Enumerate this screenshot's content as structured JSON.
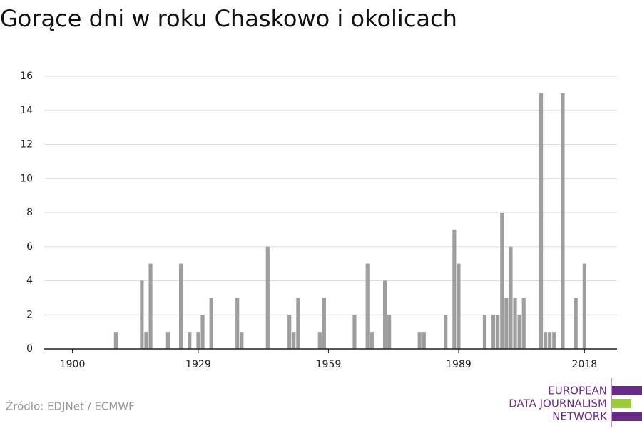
{
  "chart_data": {
    "type": "bar",
    "title": "Gorące dni w roku Chaskowo i okolicach",
    "x": [
      1910,
      1916,
      1917,
      1918,
      1922,
      1925,
      1927,
      1929,
      1930,
      1932,
      1938,
      1939,
      1945,
      1950,
      1951,
      1952,
      1957,
      1958,
      1965,
      1968,
      1969,
      1972,
      1973,
      1980,
      1981,
      1986,
      1988,
      1989,
      1995,
      1997,
      1998,
      1999,
      2000,
      2001,
      2002,
      2003,
      2004,
      2008,
      2009,
      2010,
      2011,
      2013,
      2016,
      2018
    ],
    "values": [
      1,
      4,
      1,
      5,
      1,
      5,
      1,
      1,
      2,
      3,
      3,
      1,
      6,
      2,
      1,
      3,
      1,
      3,
      2,
      5,
      1,
      4,
      2,
      1,
      1,
      2,
      7,
      5,
      2,
      2,
      2,
      8,
      3,
      6,
      3,
      2,
      3,
      15,
      1,
      1,
      1,
      15,
      3,
      5
    ],
    "color": "#9e9e9e",
    "xlim": [
      1893.5,
      2025.5
    ],
    "xticks": [
      1900,
      1929,
      1959,
      1989,
      2018
    ],
    "ylim": [
      0,
      16
    ],
    "yticks": [
      0,
      2,
      4,
      6,
      8,
      10,
      12,
      14,
      16
    ],
    "grid": true,
    "source": "Źródło: EDJNet / ECMWF",
    "logo": [
      "EUROPEAN",
      "DATA JOURNALISM",
      "NETWORK"
    ]
  }
}
